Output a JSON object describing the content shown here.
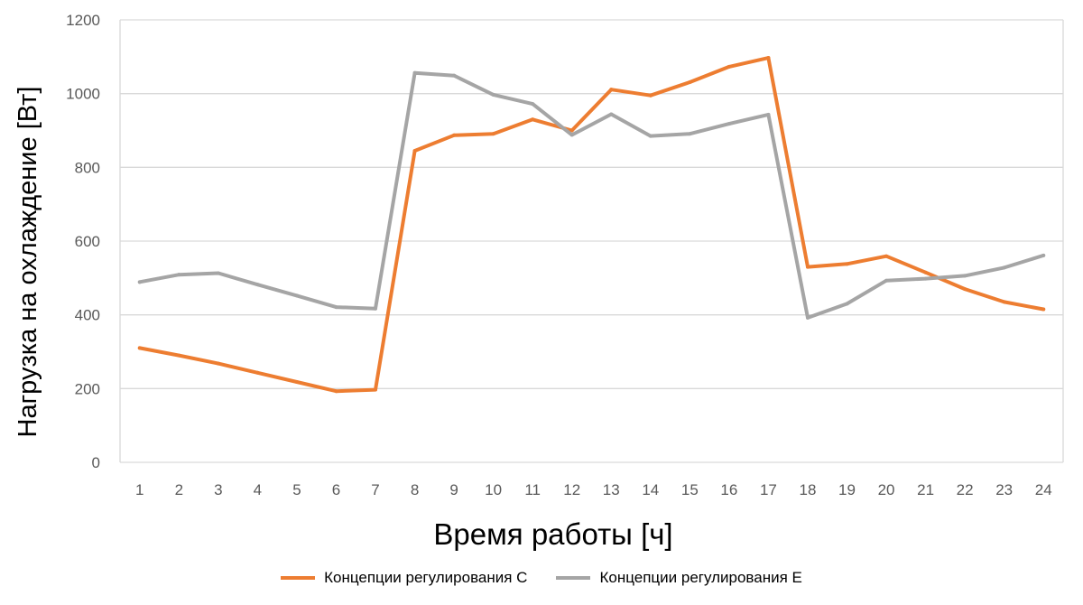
{
  "chart_data": {
    "type": "line",
    "xlabel": "Время работы [ч]",
    "ylabel": "Нагрузка на охлаждение [Вт]",
    "x": [
      1,
      2,
      3,
      4,
      5,
      6,
      7,
      8,
      9,
      10,
      11,
      12,
      13,
      14,
      15,
      16,
      17,
      18,
      19,
      20,
      21,
      22,
      23,
      24
    ],
    "categories": [
      "1",
      "2",
      "3",
      "4",
      "5",
      "6",
      "7",
      "8",
      "9",
      "10",
      "11",
      "12",
      "13",
      "14",
      "15",
      "16",
      "17",
      "18",
      "19",
      "20",
      "21",
      "22",
      "23",
      "24"
    ],
    "ylim": [
      0,
      1200
    ],
    "yticks": [
      "0",
      "200",
      "400",
      "600",
      "800",
      "1000",
      "1200"
    ],
    "grid": true,
    "legend_position": "bottom",
    "series": [
      {
        "name": "Концепции регулирования C",
        "color": "#ED7D31",
        "values": [
          310,
          290,
          268,
          243,
          218,
          193,
          197,
          845,
          887,
          891,
          930,
          900,
          1011,
          995,
          1031,
          1073,
          1097,
          530,
          538,
          559,
          515,
          470,
          435,
          415
        ]
      },
      {
        "name": "Концепции регулирования E",
        "color": "#A5A5A5",
        "values": [
          489,
          509,
          513,
          482,
          452,
          421,
          417,
          1056,
          1049,
          997,
          972,
          888,
          944,
          885,
          891,
          918,
          943,
          392,
          430,
          493,
          498,
          506,
          528,
          561
        ]
      }
    ]
  }
}
